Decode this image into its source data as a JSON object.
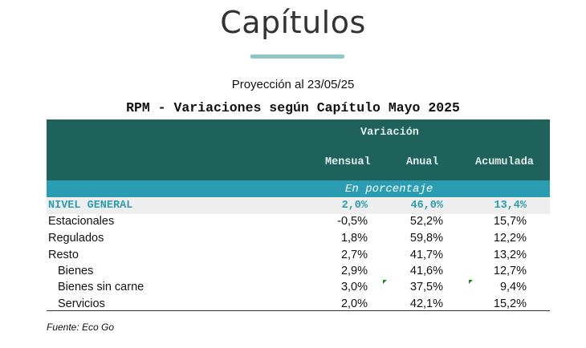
{
  "page": {
    "title": "Capítulos",
    "subtitle": "Proyección al 23/05/25",
    "table_title": "RPM - Variaciones según Capítulo Mayo 2025",
    "source": "Fuente: Eco Go"
  },
  "table": {
    "group_header": "Variación",
    "columns": [
      "Mensual",
      "Anual",
      "Acumulada"
    ],
    "unit_label": "En porcentaje",
    "rows": [
      {
        "label": "NIVEL GENERAL",
        "values": [
          "2,0%",
          "46,0%",
          "13,4%"
        ]
      },
      {
        "label": "Estacionales",
        "values": [
          "-0,5%",
          "52,2%",
          "15,7%"
        ]
      },
      {
        "label": "Regulados",
        "values": [
          "1,8%",
          "59,8%",
          "12,2%"
        ]
      },
      {
        "label": "Resto",
        "values": [
          "2,7%",
          "41,7%",
          "13,2%"
        ]
      },
      {
        "label": "Bienes",
        "values": [
          "2,9%",
          "41,6%",
          "12,7%"
        ]
      },
      {
        "label": "Bienes sin carne",
        "values": [
          "3,0%",
          "37,5%",
          "9,4%"
        ]
      },
      {
        "label": "Servicios",
        "values": [
          "2,0%",
          "42,1%",
          "15,2%"
        ]
      }
    ]
  },
  "colors": {
    "header_bg": "#1f625c",
    "unit_band_bg": "#2a9db3",
    "accent_underline": "#8ec7c5",
    "nivel_general_text": "#2a9db3"
  }
}
